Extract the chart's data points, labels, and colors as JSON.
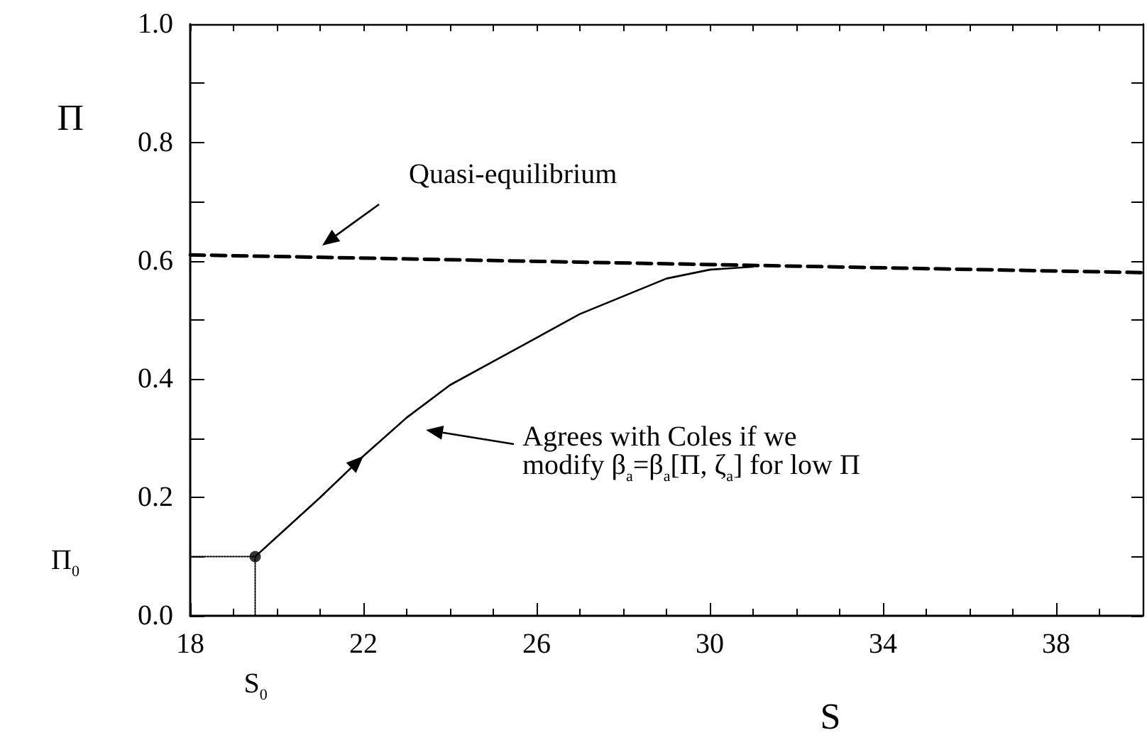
{
  "chart_data": {
    "type": "line",
    "xlabel": "S",
    "ylabel": "Π",
    "xlim": [
      18,
      40
    ],
    "xticks": [
      18,
      22,
      26,
      30,
      34,
      38
    ],
    "ylim": [
      0,
      1
    ],
    "yticks": [
      {
        "value": 0,
        "label": "0.0"
      },
      {
        "value": 0.2,
        "label": "0.2"
      },
      {
        "value": 0.4,
        "label": "0.4"
      },
      {
        "value": 0.6,
        "label": "0.6"
      },
      {
        "value": 0.8,
        "label": "0.8"
      },
      {
        "value": 1,
        "label": "1.0"
      }
    ],
    "grid": false,
    "series": [
      {
        "color": "#000000",
        "line_style": "dashed",
        "marker": "none",
        "x": [
          18,
          40
        ],
        "values": [
          0.61,
          0.58
        ]
      },
      {
        "color": "#000000",
        "line_style": "solid",
        "marker": "none",
        "x": [
          19.5,
          21,
          22,
          23,
          24,
          25,
          26,
          27,
          28,
          29,
          30,
          31
        ],
        "values": [
          0.1,
          0.2,
          0.27,
          0.335,
          0.39,
          0.43,
          0.47,
          0.51,
          0.54,
          0.57,
          0.585,
          0.59
        ]
      },
      {
        "color": "#000000",
        "line_style": "dotted",
        "marker": "none",
        "x": [
          18,
          19.5,
          19.5
        ],
        "values": [
          0.1,
          0.1,
          0
        ]
      },
      {
        "type": "scatter",
        "color": "#000000",
        "marker": "circle",
        "x": [
          19.5
        ],
        "values": [
          0.1
        ]
      }
    ],
    "annotations": [
      "Quasi-equilibrium",
      "Agrees with Coles if we\nmodify β$_{a}$=β$_{a}$[Π, ζ$_{a}$] for low Π",
      "Π$_{0}$",
      {
        "text": "S$_{0}$",
        "x": 19.5,
        "y": 0
      }
    ]
  }
}
